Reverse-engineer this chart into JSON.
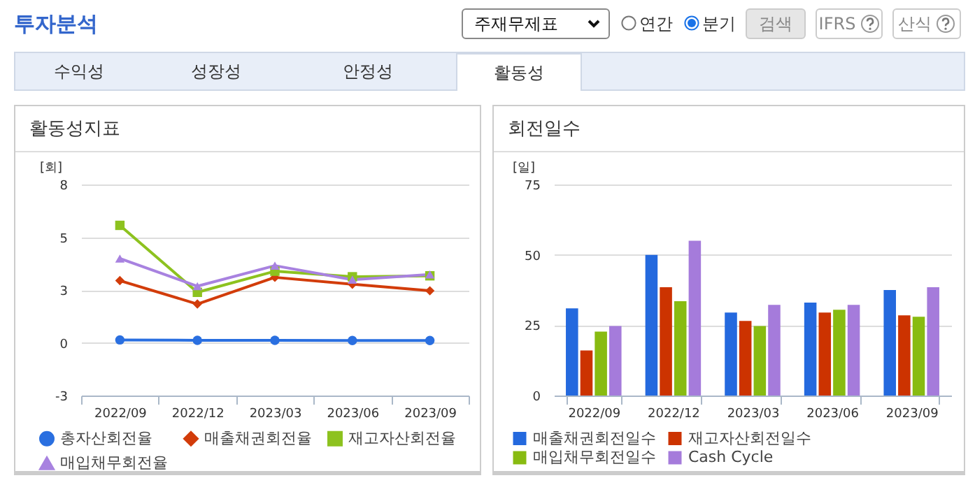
{
  "chart_data": [
    {
      "type": "other",
      "title": "투자분석",
      "annotations": [
        "주재무제표",
        "연간",
        "분기",
        "검색",
        "IFRS",
        "산식",
        "수익성",
        "성장성",
        "안정성",
        "활동성"
      ]
    },
    {
      "type": "line",
      "title": "활동성지표",
      "ylabel": "[회]",
      "categories": [
        "2022/09",
        "2022/12",
        "2023/03",
        "2023/06",
        "2023/09"
      ],
      "series": [
        {
          "name": "총자산회전율",
          "color": "#2a6fe0",
          "marker": "circle",
          "values": [
            0.15,
            0.13,
            0.13,
            0.12,
            0.12
          ]
        },
        {
          "name": "매출채권회전율",
          "color": "#d23c0a",
          "marker": "diamond",
          "values": [
            3.24,
            2.02,
            3.41,
            3.05,
            2.71
          ]
        },
        {
          "name": "재고자산회전율",
          "color": "#8dc21f",
          "marker": "square",
          "values": [
            6.12,
            2.63,
            3.73,
            3.44,
            3.49
          ]
        },
        {
          "name": "매입채무회전율",
          "color": "#a882e0",
          "marker": "triangle",
          "values": [
            4.39,
            2.95,
            4.02,
            3.29,
            3.56
          ]
        }
      ],
      "ylim": [
        -2.75,
        8.25
      ],
      "yticks": [
        {
          "value": -2.75,
          "label": "-3"
        },
        {
          "value": 0,
          "label": "0"
        },
        {
          "value": 2.75,
          "label": "3"
        },
        {
          "value": 5.5,
          "label": "5"
        },
        {
          "value": 8.25,
          "label": "8"
        }
      ],
      "grid": "y",
      "legend": "bottom"
    },
    {
      "type": "bar",
      "title": "회전일수",
      "ylabel": "[일]",
      "categories": [
        "2022/09",
        "2022/12",
        "2023/03",
        "2023/06",
        "2023/09"
      ],
      "series": [
        {
          "name": "매출채권회전일수",
          "color": "#2469de",
          "values": [
            31,
            50,
            29.5,
            33,
            37.5
          ]
        },
        {
          "name": "재고자산회전일수",
          "color": "#cc3300",
          "values": [
            16,
            38.5,
            26.5,
            29.5,
            28.5
          ]
        },
        {
          "name": "매입채무회전일수",
          "color": "#88bb11",
          "values": [
            22.7,
            33.5,
            24.7,
            30.5,
            28
          ]
        },
        {
          "name": "Cash Cycle",
          "color": "#a57bdb",
          "values": [
            24.7,
            55,
            32.2,
            32.2,
            38.5
          ]
        }
      ],
      "ylim": [
        0,
        75
      ],
      "yticks": [
        0,
        25,
        50,
        75
      ],
      "grid": "y",
      "legend": "bottom"
    }
  ]
}
